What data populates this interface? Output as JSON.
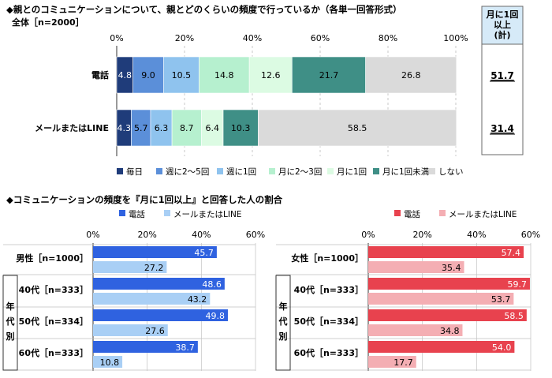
{
  "chart_data": [
    {
      "type": "bar",
      "stacked": true,
      "orientation": "horizontal",
      "title": "◆親とのコミュニケーションについて、親とどのくらいの頻度で行っているか（各単一回答形式）",
      "subtitle": "全体［n=2000］",
      "categories": [
        "電話",
        "メールまたはLINE"
      ],
      "xlim": [
        0,
        100
      ],
      "x_ticks": [
        "0%",
        "20%",
        "40%",
        "60%",
        "80%",
        "100%"
      ],
      "series": [
        {
          "name": "毎日",
          "values": [
            4.8,
            4.3
          ]
        },
        {
          "name": "週に2～5回",
          "values": [
            9.0,
            5.7
          ]
        },
        {
          "name": "週に1回",
          "values": [
            10.5,
            6.3
          ]
        },
        {
          "name": "月に2～3回",
          "values": [
            14.8,
            8.7
          ]
        },
        {
          "name": "月に1回",
          "values": [
            12.6,
            6.4
          ]
        },
        {
          "name": "月に1回未満",
          "values": [
            21.7,
            10.3
          ]
        },
        {
          "name": "しない",
          "values": [
            26.8,
            58.5
          ]
        }
      ],
      "colors": [
        "#1f3c7a",
        "#5b8fd9",
        "#8fc3ee",
        "#b6f0cf",
        "#dcfbe3",
        "#3f8f86",
        "#dadada"
      ],
      "summary": {
        "header": [
          "月に1回",
          "以上",
          "(計)"
        ],
        "values": [
          "51.7",
          "31.4"
        ]
      },
      "grid": true,
      "legend_position": "bottom"
    },
    {
      "type": "bar",
      "orientation": "horizontal",
      "title": "◆コミュニケーションの頻度を『月に1回以上』と回答した人の割合",
      "categories": [
        "男性［n=1000］",
        "40代［n=333］",
        "50代［n=334］",
        "60代［n=333］"
      ],
      "group_label": "年代別",
      "xlim": [
        0,
        60
      ],
      "x_ticks": [
        "0%",
        "20%",
        "40%",
        "60%"
      ],
      "series": [
        {
          "name": "電話",
          "values": [
            45.7,
            48.6,
            49.8,
            38.7
          ]
        },
        {
          "name": "メールまたはLINE",
          "values": [
            27.2,
            43.2,
            27.6,
            10.8
          ]
        }
      ],
      "colors": [
        "#2f62e0",
        "#a9cff5"
      ],
      "legend_position": "top"
    },
    {
      "type": "bar",
      "orientation": "horizontal",
      "categories": [
        "女性［n=1000］",
        "40代［n=333］",
        "50代［n=334］",
        "60代［n=333］"
      ],
      "group_label": "年代別",
      "xlim": [
        0,
        60
      ],
      "x_ticks": [
        "0%",
        "20%",
        "40%",
        "60%"
      ],
      "series": [
        {
          "name": "電話",
          "values": [
            57.4,
            59.7,
            58.5,
            54.0
          ]
        },
        {
          "name": "メールまたはLINE",
          "values": [
            35.4,
            53.7,
            34.8,
            17.7
          ]
        }
      ],
      "colors": [
        "#e8424e",
        "#f4aeb3"
      ],
      "legend_position": "top"
    }
  ]
}
